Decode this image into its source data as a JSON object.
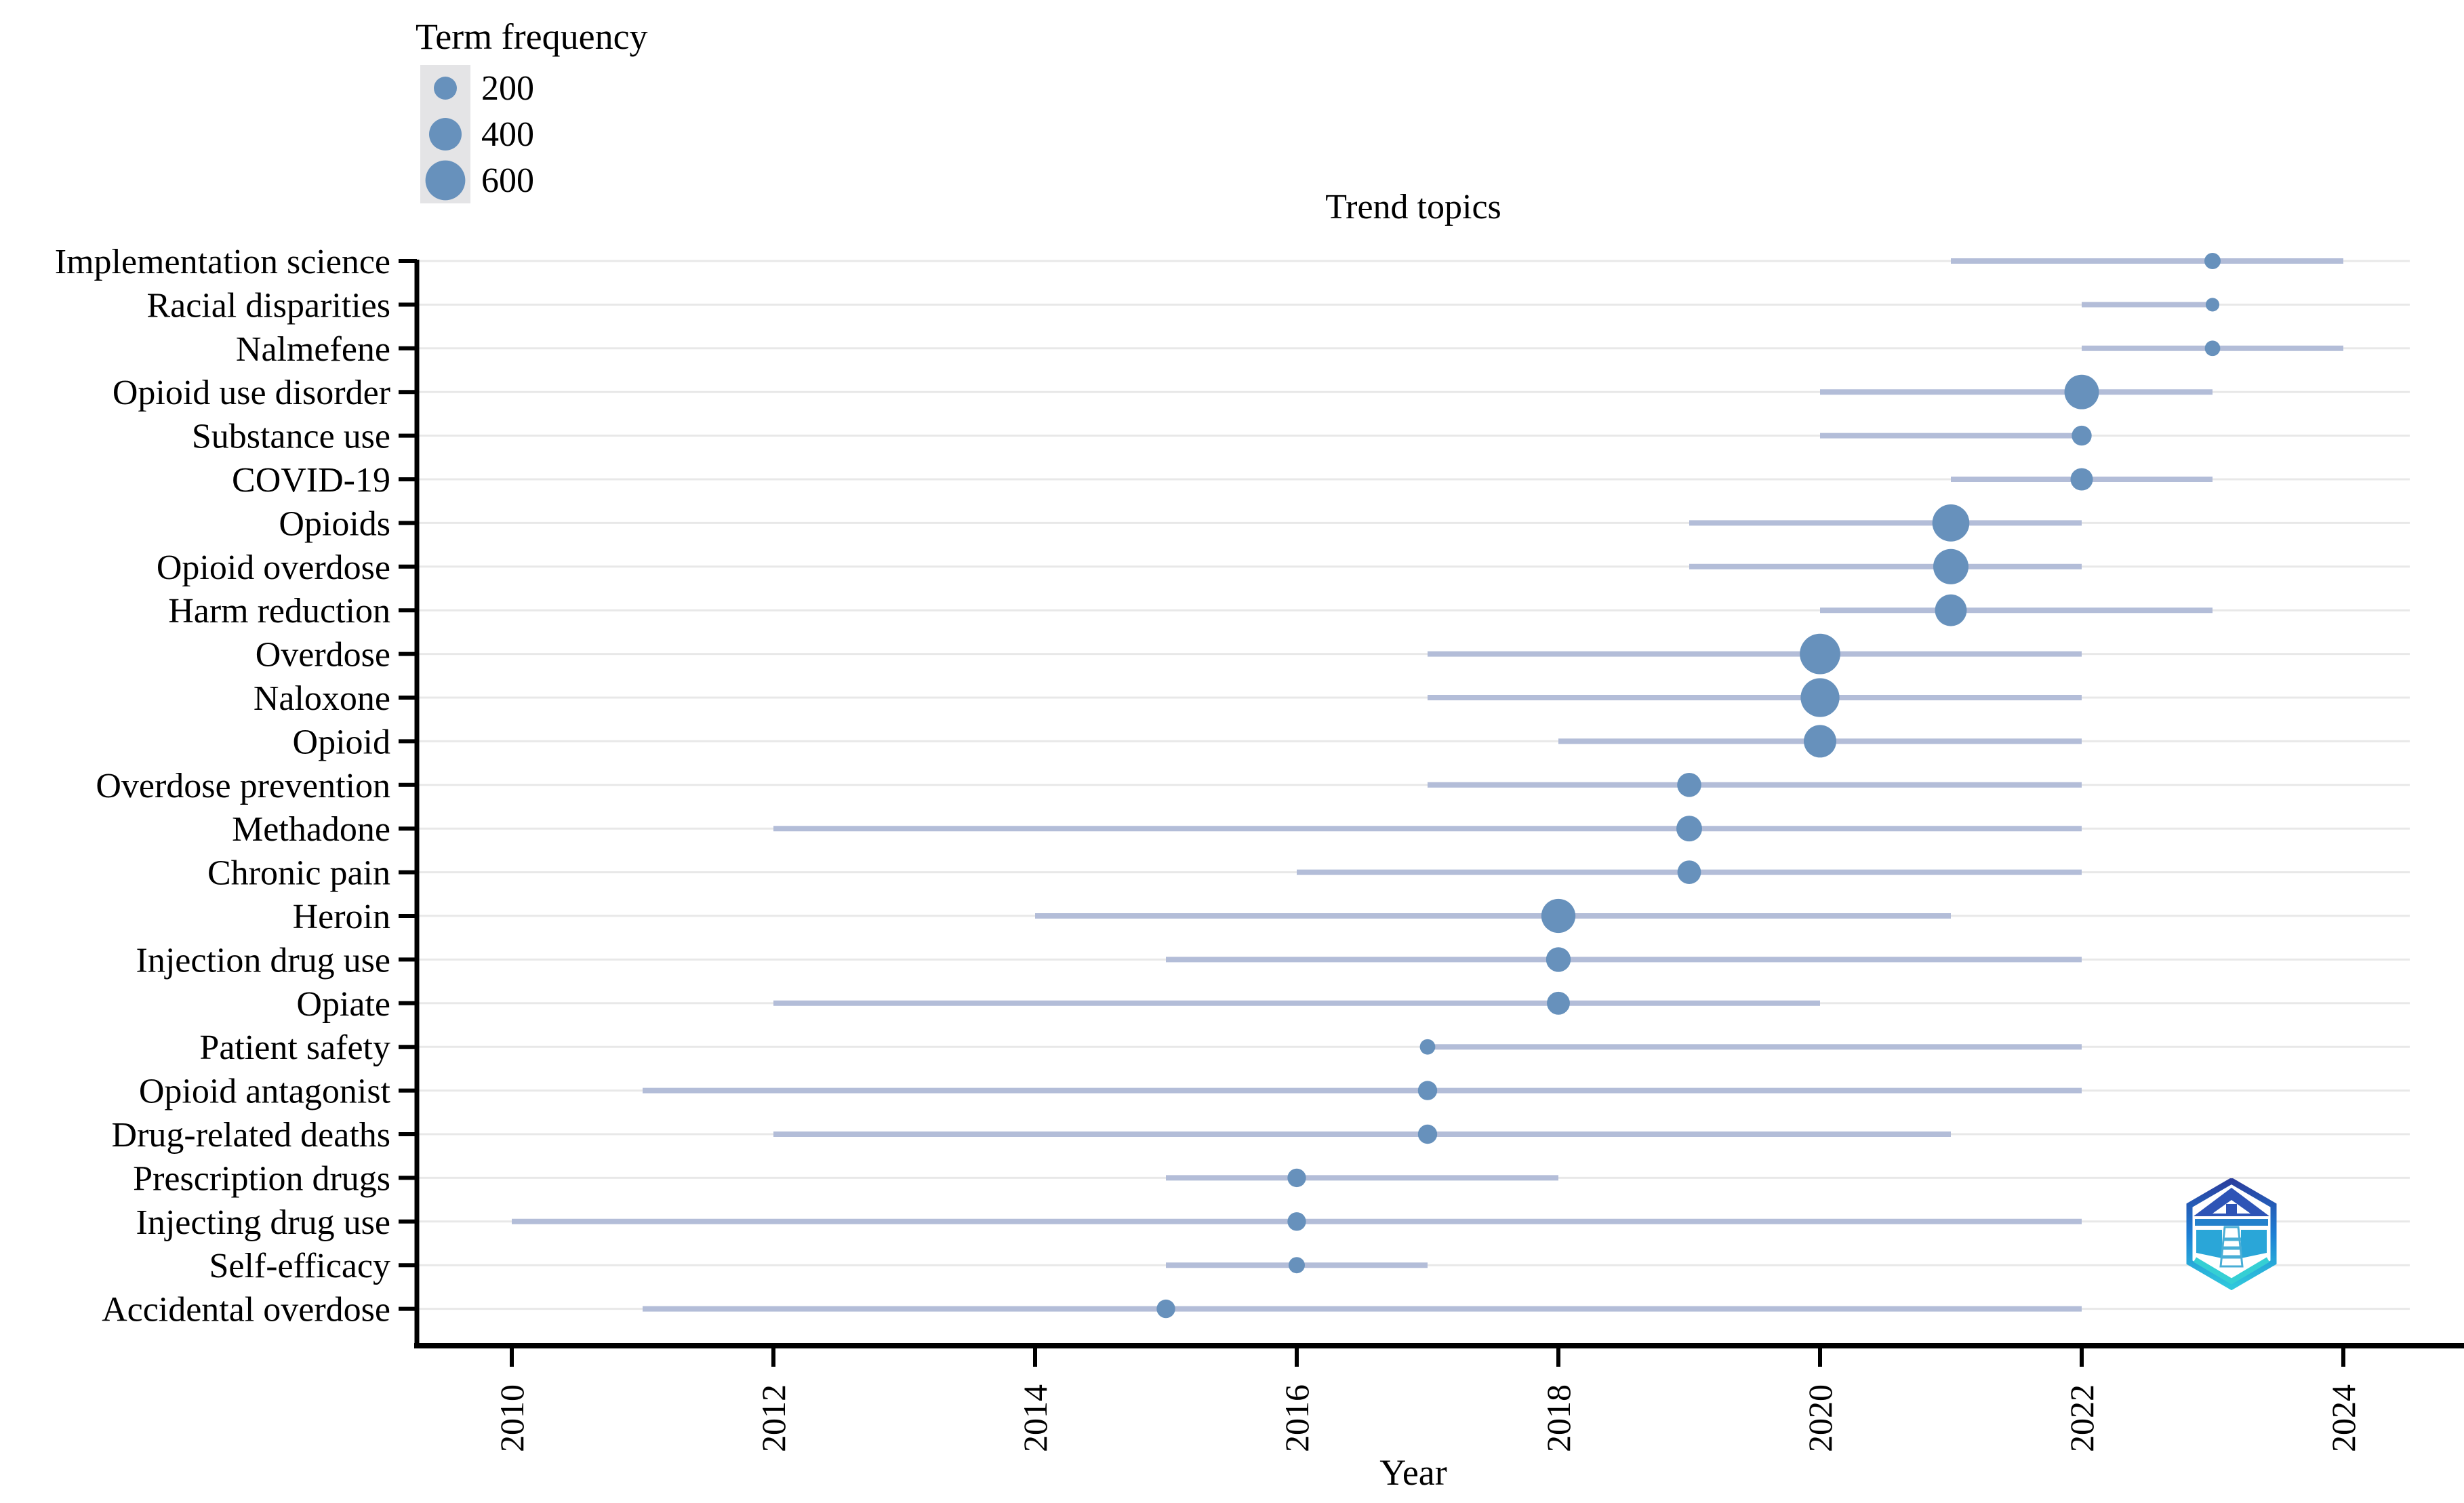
{
  "chart_data": {
    "type": "scatter",
    "subtype": "trend-topics-bubble-timeline",
    "title": "Trend topics",
    "xlabel": "Year",
    "x_ticks": [
      2010,
      2012,
      2014,
      2016,
      2018,
      2020,
      2022,
      2024
    ],
    "xlim": [
      2009.3,
      2024.5
    ],
    "grid": "horizontal-only",
    "legend": {
      "title": "Term frequency",
      "sizes": [
        200,
        400,
        600
      ],
      "position": "top-left"
    },
    "colors": {
      "dot": "#6791bc",
      "range_line": "#b3bdd8",
      "gridline": "#e8e8e8",
      "axis": "#000000",
      "legend_key_bg": "#e4e4e6",
      "text": "#000000"
    },
    "topics": [
      {
        "label": "Implementation science",
        "freq": 100,
        "year": 2023,
        "q1": 2021,
        "q3": 2024
      },
      {
        "label": "Racial disparities",
        "freq": 70,
        "year": 2023,
        "q1": 2022,
        "q3": 2023
      },
      {
        "label": "Nalmefene",
        "freq": 90,
        "year": 2023,
        "q1": 2022,
        "q3": 2024
      },
      {
        "label": "Opioid use disorder",
        "freq": 450,
        "year": 2022,
        "q1": 2020,
        "q3": 2023
      },
      {
        "label": "Substance use",
        "freq": 150,
        "year": 2022,
        "q1": 2020,
        "q3": 2022
      },
      {
        "label": "COVID-19",
        "freq": 190,
        "year": 2022,
        "q1": 2021,
        "q3": 2023
      },
      {
        "label": "Opioids",
        "freq": 520,
        "year": 2021,
        "q1": 2019,
        "q3": 2022
      },
      {
        "label": "Opioid overdose",
        "freq": 470,
        "year": 2021,
        "q1": 2019,
        "q3": 2022
      },
      {
        "label": "Harm reduction",
        "freq": 380,
        "year": 2021,
        "q1": 2020,
        "q3": 2023
      },
      {
        "label": "Overdose",
        "freq": 620,
        "year": 2020,
        "q1": 2017,
        "q3": 2022
      },
      {
        "label": "Naloxone",
        "freq": 570,
        "year": 2020,
        "q1": 2017,
        "q3": 2022
      },
      {
        "label": "Opioid",
        "freq": 400,
        "year": 2020,
        "q1": 2018,
        "q3": 2022
      },
      {
        "label": "Overdose prevention",
        "freq": 220,
        "year": 2019,
        "q1": 2017,
        "q3": 2022
      },
      {
        "label": "Methadone",
        "freq": 250,
        "year": 2019,
        "q1": 2012,
        "q3": 2022
      },
      {
        "label": "Chronic pain",
        "freq": 210,
        "year": 2019,
        "q1": 2016,
        "q3": 2022
      },
      {
        "label": "Heroin",
        "freq": 440,
        "year": 2018,
        "q1": 2014,
        "q3": 2021
      },
      {
        "label": "Injection drug use",
        "freq": 230,
        "year": 2018,
        "q1": 2015,
        "q3": 2022
      },
      {
        "label": "Opiate",
        "freq": 200,
        "year": 2018,
        "q1": 2012,
        "q3": 2020
      },
      {
        "label": "Patient safety",
        "freq": 90,
        "year": 2017,
        "q1": 2017,
        "q3": 2022
      },
      {
        "label": "Opioid antagonist",
        "freq": 140,
        "year": 2017,
        "q1": 2011,
        "q3": 2022
      },
      {
        "label": "Drug-related deaths",
        "freq": 140,
        "year": 2017,
        "q1": 2012,
        "q3": 2021
      },
      {
        "label": "Prescription drugs",
        "freq": 130,
        "year": 2016,
        "q1": 2015,
        "q3": 2018
      },
      {
        "label": "Injecting drug use",
        "freq": 130,
        "year": 2016,
        "q1": 2010,
        "q3": 2022
      },
      {
        "label": "Self-efficacy",
        "freq": 100,
        "year": 2016,
        "q1": 2015,
        "q3": 2017
      },
      {
        "label": "Accidental overdose",
        "freq": 130,
        "year": 2015,
        "q1": 2011,
        "q3": 2022
      }
    ]
  },
  "logo": {
    "name": "bibliometrix-logo"
  }
}
